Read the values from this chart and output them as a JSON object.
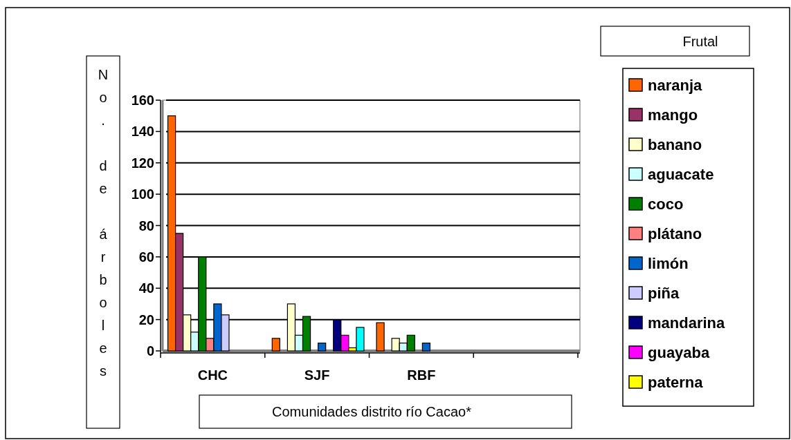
{
  "chart_data": {
    "type": "bar",
    "xlabel": "Comunidades distrito río Cacao*",
    "ylabel": "No. de árboles",
    "legend_title": "Frutal",
    "categories": [
      "CHC",
      "SJF",
      "RBF",
      null
    ],
    "series": [
      {
        "name": "naranja",
        "color": "#ff6600",
        "values": [
          150,
          8,
          18,
          null
        ]
      },
      {
        "name": "mango",
        "color": "#993366",
        "values": [
          75,
          null,
          null,
          null
        ]
      },
      {
        "name": "banano",
        "color": "#ffffcc",
        "values": [
          23,
          30,
          8,
          null
        ]
      },
      {
        "name": "aguacate",
        "color": "#ccffff",
        "values": [
          12,
          10,
          5,
          null
        ]
      },
      {
        "name": "coco",
        "color": "#008000",
        "values": [
          60,
          22,
          10,
          null
        ]
      },
      {
        "name": "plátano",
        "color": "#ff8080",
        "values": [
          8,
          null,
          null,
          null
        ]
      },
      {
        "name": "limón",
        "color": "#0066cc",
        "values": [
          30,
          5,
          5,
          null
        ]
      },
      {
        "name": "piña",
        "color": "#ccccff",
        "values": [
          23,
          null,
          null,
          null
        ]
      },
      {
        "name": "mandarina",
        "color": "#000080",
        "values": [
          null,
          20,
          null,
          null
        ]
      },
      {
        "name": "guayaba",
        "color": "#ff00ff",
        "values": [
          null,
          10,
          null,
          null
        ]
      },
      {
        "name": "paterna",
        "color": "#ffff00",
        "values": [
          null,
          2,
          null,
          null
        ]
      },
      {
        "color": "#00ffff",
        "values": [
          null,
          15,
          null,
          null
        ]
      }
    ],
    "ylim": [
      0,
      160
    ],
    "yticks": [
      0,
      20,
      40,
      60,
      80,
      100,
      120,
      140,
      160
    ],
    "grid": "y",
    "legend": "right"
  }
}
